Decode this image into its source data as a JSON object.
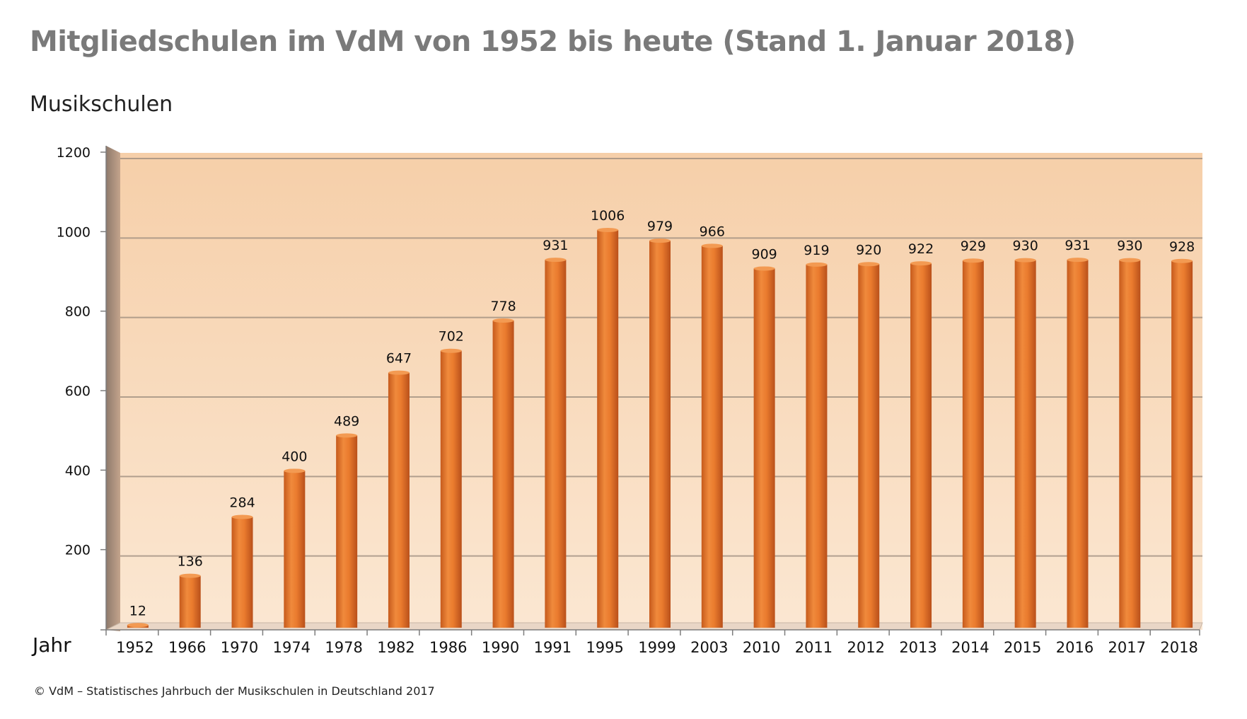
{
  "header": {
    "title": "Mitgliedschulen im VdM von 1952 bis heute (Stand 1. Januar 2018)",
    "subtitle": "Musikschulen"
  },
  "footer": {
    "source": "© VdM – Statistisches Jahrbuch der Musikschulen in Deutschland 2017"
  },
  "colors": {
    "bar": "#e8742a",
    "bar_dark": "#b8501a",
    "bar_light": "#f39a52",
    "plot_bg_top": "#f6cfa9",
    "plot_bg_bottom": "#fbe7d2",
    "gridline": "#9a8a7c",
    "title": "#7a7a7a"
  },
  "chart_data": {
    "type": "bar",
    "title": "Mitgliedschulen im VdM von 1952 bis heute (Stand 1. Januar 2018)",
    "ylabel": "Musikschulen",
    "xlabel": "Jahr",
    "ylim": [
      0,
      1200
    ],
    "yticks": [
      200,
      400,
      600,
      800,
      1000,
      1200
    ],
    "grid": true,
    "categories": [
      "1952",
      "1966",
      "1970",
      "1974",
      "1978",
      "1982",
      "1986",
      "1990",
      "1991",
      "1995",
      "1999",
      "2003",
      "2010",
      "2011",
      "2012",
      "2013",
      "2014",
      "2015",
      "2016",
      "2017",
      "2018"
    ],
    "values": [
      12,
      136,
      284,
      400,
      489,
      647,
      702,
      778,
      931,
      1006,
      979,
      966,
      909,
      919,
      920,
      922,
      929,
      930,
      931,
      930,
      928
    ]
  }
}
